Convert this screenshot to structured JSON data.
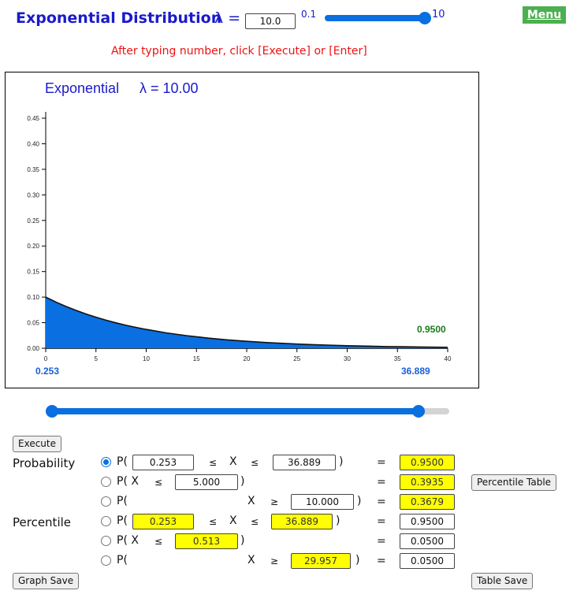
{
  "header": {
    "title": "Exponential Distribution",
    "lambda_label": "λ =",
    "lambda_value": "10.0",
    "slider_min": "0.1",
    "slider_max": "10",
    "lambda_slider_fraction": 1.0,
    "menu_label": "Menu",
    "hint": "After typing number, click [Execute] or [Enter]"
  },
  "graph": {
    "title_left": "Exponential",
    "title_right": "λ = 10.00",
    "lower_value": "0.253",
    "upper_value": "36.889",
    "area_label": "0.9500",
    "fill_color": "#0a6fe0",
    "curve_color": "#111111"
  },
  "chart_data": {
    "type": "area",
    "title": "Exponential   λ = 10.00",
    "lambda": 10,
    "x_ticks": [
      "0",
      "5",
      "10",
      "15",
      "20",
      "25",
      "30",
      "35",
      "40"
    ],
    "y_ticks": [
      "0.00",
      "0.05",
      "0.10",
      "0.15",
      "0.20",
      "0.25",
      "0.30",
      "0.35",
      "0.40",
      "0.45"
    ],
    "xlim": [
      0,
      40
    ],
    "ylim": [
      0,
      0.45
    ],
    "shaded_range": [
      0.253,
      36.889
    ],
    "shaded_probability": 0.95,
    "series": [
      {
        "x": [
          0,
          1,
          2,
          3,
          4,
          5,
          6,
          7,
          8,
          9,
          10,
          12,
          14,
          16,
          18,
          20,
          22,
          24,
          26,
          28,
          30,
          32,
          34,
          36,
          38,
          40
        ],
        "values": [
          0.1,
          0.0905,
          0.0819,
          0.0741,
          0.067,
          0.0607,
          0.0549,
          0.0497,
          0.0449,
          0.0407,
          0.0368,
          0.0301,
          0.0247,
          0.0202,
          0.0165,
          0.0135,
          0.0111,
          0.0091,
          0.0074,
          0.0061,
          0.005,
          0.0041,
          0.0033,
          0.0027,
          0.0022,
          0.0018
        ]
      }
    ]
  },
  "range_slider": {
    "lower_fraction": 0.0063,
    "upper_fraction": 0.9222
  },
  "controls": {
    "execute_label": "Execute",
    "percentile_table_label": "Percentile Table",
    "graph_save_label": "Graph Save",
    "table_save_label": "Table Save"
  },
  "probability": {
    "section_label": "Probability",
    "row1": {
      "open": "P(",
      "lower": "0.253",
      "le1": "≤",
      "x": "X",
      "le2": "≤",
      "upper": "36.889",
      "close": ")",
      "eq": "=",
      "result": "0.9500"
    },
    "row2": {
      "open": "P( X",
      "le": "≤",
      "value": "5.000",
      "close": ")",
      "eq": "=",
      "result": "0.3935"
    },
    "row3": {
      "open": "P(",
      "x": "X",
      "ge": "≥",
      "value": "10.000",
      "close": ")",
      "eq": "=",
      "result": "0.3679"
    }
  },
  "percentile": {
    "section_label": "Percentile",
    "row1": {
      "open": "P(",
      "lower": "0.253",
      "le1": "≤",
      "x": "X",
      "le2": "≤",
      "upper": "36.889",
      "close": ")",
      "eq": "=",
      "prob": "0.9500"
    },
    "row2": {
      "open": "P( X",
      "le": "≤",
      "value": "0.513",
      "close": ")",
      "eq": "=",
      "prob": "0.0500"
    },
    "row3": {
      "open": "P(",
      "x": "X",
      "ge": "≥",
      "value": "29.957",
      "close": ")",
      "eq": "=",
      "prob": "0.0500"
    }
  },
  "selected_mode": "probability-row1"
}
